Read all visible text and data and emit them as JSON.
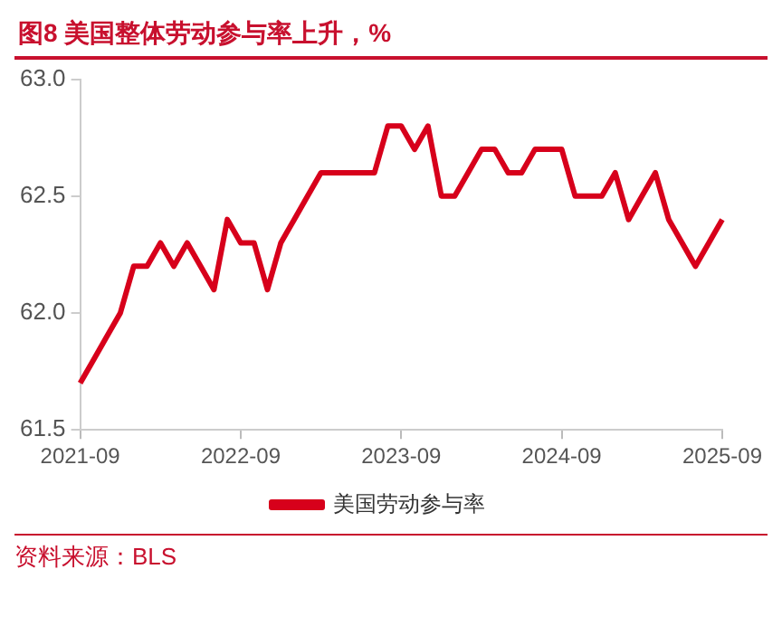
{
  "chart_data": {
    "type": "line",
    "title": "图8  美国整体劳动参与率上升，%",
    "annotations": [
      "资料来源：BLS"
    ],
    "categories": [
      "2021-09",
      null,
      null,
      null,
      null,
      null,
      null,
      null,
      null,
      null,
      null,
      null,
      "2022-09",
      null,
      null,
      null,
      null,
      null,
      null,
      null,
      null,
      null,
      null,
      null,
      "2023-09",
      null,
      null,
      null,
      null,
      null,
      null,
      null,
      null,
      null,
      null,
      null,
      "2024-09",
      null,
      null,
      null,
      null,
      null,
      null,
      null,
      null,
      null,
      null,
      null,
      "2025-09"
    ],
    "series": [
      {
        "name": "美国劳动参与率",
        "color": "#d7001b",
        "values": [
          61.7,
          61.8,
          61.9,
          62.0,
          62.2,
          62.2,
          62.3,
          62.2,
          62.3,
          62.2,
          62.1,
          62.4,
          62.3,
          62.3,
          62.1,
          62.3,
          62.4,
          62.5,
          62.6,
          62.6,
          62.6,
          62.6,
          62.6,
          62.8,
          62.8,
          62.7,
          62.8,
          62.5,
          62.5,
          62.6,
          62.7,
          62.7,
          62.6,
          62.6,
          62.7,
          62.7,
          62.7,
          62.5,
          62.5,
          62.5,
          62.6,
          62.4,
          62.5,
          62.6,
          62.4,
          62.3,
          62.2,
          62.3,
          62.4
        ]
      }
    ],
    "ylim": [
      61.5,
      63.0
    ],
    "yticks": [
      {
        "value": 61.5,
        "label": "61.5"
      },
      {
        "value": 62.0,
        "label": "62.0"
      },
      {
        "value": 62.5,
        "label": "62.5"
      },
      {
        "value": 63.0,
        "label": "63.0"
      }
    ],
    "grid": false,
    "legend": "bottom",
    "marker": "none",
    "line_style": "solid"
  }
}
